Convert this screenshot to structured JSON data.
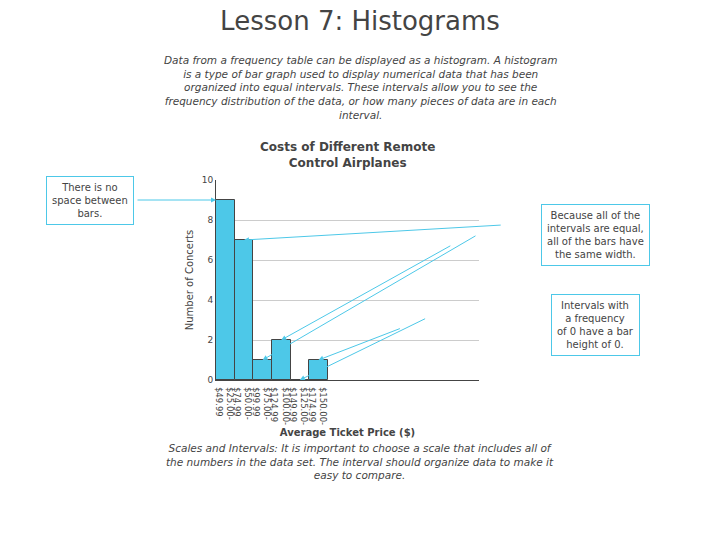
{
  "chart_data": {
    "type": "bar",
    "title": "Lesson 7: Histograms",
    "subtitle": "Costs of Different Remote\nControl Airplanes",
    "xlabel": "Average Ticket Price ($)",
    "ylabel": "Number of Concerts",
    "categories": [
      "$25.00-\n$49.99",
      "$50.00-\n$74.99",
      "$75.00-\n$99.99",
      "$100.00-\n$124.99",
      "$125.00-\n$149.99",
      "$150.00-\n$174.99"
    ],
    "values": [
      9,
      7,
      1,
      2,
      0,
      1
    ],
    "color": "#4dc8e8",
    "ylim": [
      0,
      10
    ],
    "yticks": [
      0,
      2,
      4,
      6,
      8,
      10
    ],
    "grid": true,
    "annotations": [
      "Data from a frequency table can be displayed as a histogram. A histogram\nis a type of bar graph used to display numerical data that has been\norganized into equal intervals. These intervals allow you to see the\nfrequency distribution of the data, or how many pieces of data are in each\ninterval.",
      "There is no\nspace between\nbars.",
      "Because all of the\nintervals are equal,\nall of the bars have\nthe same width.",
      "Intervals with\na frequency\nof 0 have a bar\nheight of 0.",
      "Scales and Intervals: It is important to choose a scale that includes all of\nthe numbers in the data set. The interval should organize data to make it\neasy to compare."
    ]
  }
}
